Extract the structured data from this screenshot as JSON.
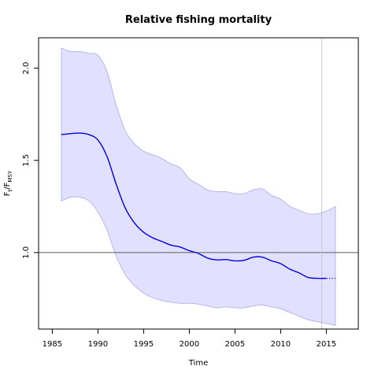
{
  "chart_data": {
    "type": "line",
    "title": "Relative fishing mortality",
    "xlabel": "Time",
    "ylabel": {
      "main": "F",
      "sub1": "t",
      "sep": "/F",
      "sub2": "MSY"
    },
    "xlim": [
      1983.5,
      2018.5
    ],
    "ylim": [
      0.585,
      2.165
    ],
    "x_ticks": [
      "1985",
      "1990",
      "1995",
      "2000",
      "2005",
      "2010",
      "2015"
    ],
    "y_ticks": [
      "1.0",
      "1.5",
      "2.0"
    ],
    "reference_line": {
      "y": 1.0,
      "color": "#6e6e6e"
    },
    "vertical_marker": {
      "x": 2014.5,
      "color": "#c8c8c8"
    },
    "grid": false,
    "colors": {
      "estimate": "#0000e6",
      "band_fill": "#e1e1ff",
      "band_edge": "#a8a8f0"
    },
    "series": [
      {
        "key": "estimate",
        "x": [
          1986,
          1987,
          1988,
          1989,
          1990,
          1991,
          1992,
          1993,
          1994,
          1995,
          1996,
          1997,
          1998,
          1999,
          2000,
          2001,
          2002,
          2003,
          2004,
          2005,
          2006,
          2007,
          2008,
          2009,
          2010,
          2011,
          2012,
          2013,
          2014,
          2015
        ],
        "y": [
          1.64,
          1.645,
          1.648,
          1.64,
          1.61,
          1.52,
          1.37,
          1.24,
          1.16,
          1.11,
          1.08,
          1.06,
          1.04,
          1.03,
          1.01,
          0.995,
          0.97,
          0.96,
          0.962,
          0.955,
          0.958,
          0.975,
          0.975,
          0.955,
          0.94,
          0.91,
          0.89,
          0.865,
          0.86,
          0.86
        ]
      },
      {
        "key": "projection",
        "style": "dotted",
        "x": [
          2015,
          2016
        ],
        "y": [
          0.86,
          0.86
        ]
      },
      {
        "key": "upper",
        "x": [
          1986,
          1987,
          1988,
          1989,
          1990,
          1991,
          1992,
          1993,
          1994,
          1995,
          1996,
          1997,
          1998,
          1999,
          2000,
          2001,
          2002,
          2003,
          2004,
          2005,
          2006,
          2007,
          2008,
          2009,
          2010,
          2011,
          2012,
          2013,
          2014,
          2015,
          2016
        ],
        "y": [
          2.11,
          2.09,
          2.09,
          2.08,
          2.07,
          1.98,
          1.8,
          1.66,
          1.59,
          1.55,
          1.53,
          1.51,
          1.48,
          1.46,
          1.4,
          1.37,
          1.34,
          1.33,
          1.33,
          1.32,
          1.32,
          1.34,
          1.345,
          1.31,
          1.29,
          1.25,
          1.23,
          1.21,
          1.21,
          1.225,
          1.25
        ]
      },
      {
        "key": "lower",
        "x": [
          1986,
          1987,
          1988,
          1989,
          1990,
          1991,
          1992,
          1993,
          1994,
          1995,
          1996,
          1997,
          1998,
          1999,
          2000,
          2001,
          2002,
          2003,
          2004,
          2005,
          2006,
          2007,
          2008,
          2009,
          2010,
          2011,
          2012,
          2013,
          2014,
          2015,
          2016
        ],
        "y": [
          1.28,
          1.3,
          1.3,
          1.28,
          1.22,
          1.12,
          0.98,
          0.88,
          0.82,
          0.78,
          0.755,
          0.74,
          0.73,
          0.725,
          0.725,
          0.72,
          0.71,
          0.7,
          0.705,
          0.7,
          0.7,
          0.71,
          0.715,
          0.705,
          0.695,
          0.675,
          0.655,
          0.635,
          0.625,
          0.615,
          0.605
        ]
      }
    ]
  }
}
